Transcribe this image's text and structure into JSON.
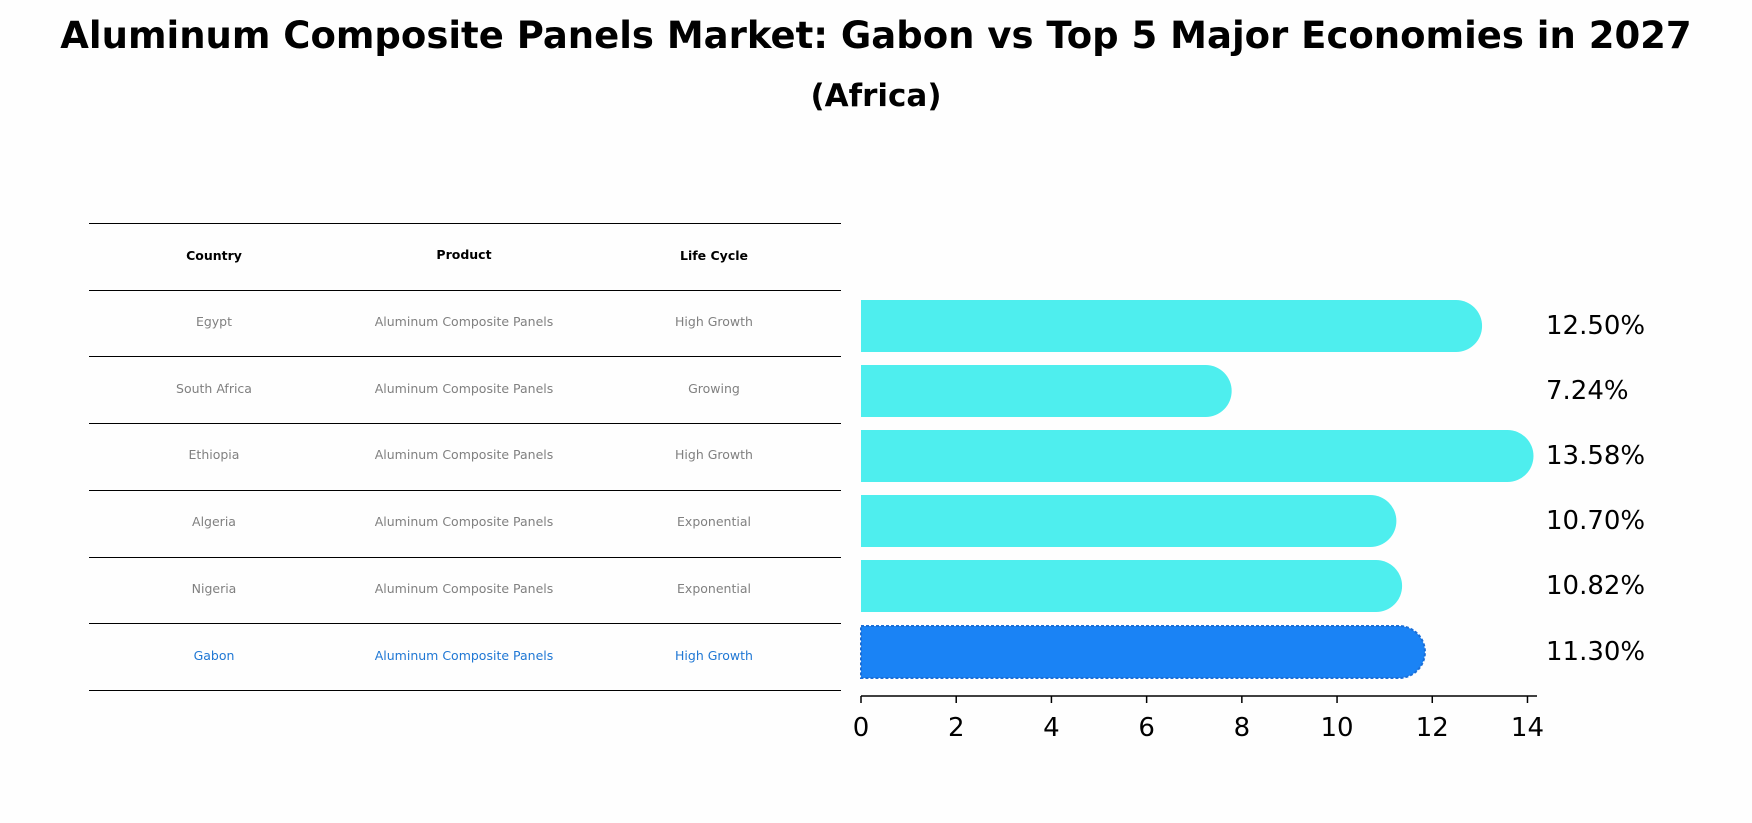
{
  "title": "Aluminum Composite Panels Market: Gabon vs Top 5 Major Economies in 2027",
  "subtitle": "(Africa)",
  "table": {
    "headers": [
      "Country",
      "Product",
      "Life Cycle"
    ],
    "rows": [
      {
        "country": "Egypt",
        "product": "Aluminum Composite Panels",
        "life_cycle": "High Growth"
      },
      {
        "country": "South Africa",
        "product": "Aluminum Composite Panels",
        "life_cycle": "Growing"
      },
      {
        "country": "Ethiopia",
        "product": "Aluminum Composite Panels",
        "life_cycle": "High Growth"
      },
      {
        "country": "Algeria",
        "product": "Aluminum Composite Panels",
        "life_cycle": "Exponential"
      },
      {
        "country": "Nigeria",
        "product": "Aluminum Composite Panels",
        "life_cycle": "Exponential"
      },
      {
        "country": "Gabon",
        "product": "Aluminum Composite Panels",
        "life_cycle": "High Growth"
      }
    ]
  },
  "colors": {
    "bar": "#4eeeee",
    "highlight_bar": "#1a83f5",
    "table_text": "#808080",
    "highlight_text": "#1f77d4"
  },
  "chart_data": {
    "type": "bar",
    "orientation": "horizontal",
    "categories": [
      "Egypt",
      "South Africa",
      "Ethiopia",
      "Algeria",
      "Nigeria",
      "Gabon"
    ],
    "values": [
      12.5,
      7.24,
      13.58,
      10.7,
      10.82,
      11.3
    ],
    "value_labels": [
      "12.50%",
      "7.24%",
      "13.58%",
      "10.70%",
      "10.82%",
      "11.30%"
    ],
    "highlight": "Gabon",
    "xlim": [
      0,
      14.2
    ],
    "xticks": [
      0,
      2,
      4,
      6,
      8,
      10,
      12,
      14
    ],
    "xtick_labels": [
      "0",
      "2",
      "4",
      "6",
      "8",
      "10",
      "12",
      "14"
    ],
    "xlabel": "",
    "ylabel": ""
  }
}
